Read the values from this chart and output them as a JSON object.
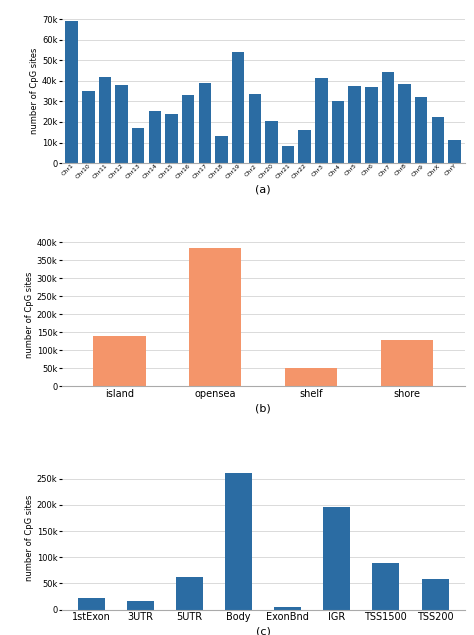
{
  "chart_a": {
    "categories": [
      "Chr1",
      "Chr10",
      "Chr11",
      "Chr12",
      "Chr13",
      "Chr14",
      "Chr15",
      "Chr16",
      "Chr17",
      "Chr18",
      "Chr19",
      "Chr2",
      "Chr20",
      "Chr21",
      "Chr22",
      "Chr3",
      "Chr4",
      "Chr5",
      "Chr6",
      "Chr7",
      "Chr8",
      "Chr9",
      "ChrX",
      "ChrY"
    ],
    "values": [
      69000,
      35000,
      42000,
      38000,
      17000,
      25500,
      24000,
      33000,
      39000,
      13000,
      54000,
      33500,
      20500,
      8500,
      16000,
      41500,
      30000,
      37500,
      37000,
      44500,
      38500,
      32000,
      22500,
      11000
    ],
    "color": "#2b6ca3",
    "ylabel": "number of CpG sites",
    "label": "(a)",
    "ylim": [
      0,
      70000
    ],
    "yticks": [
      0,
      10000,
      20000,
      30000,
      40000,
      50000,
      60000,
      70000
    ]
  },
  "chart_b": {
    "categories": [
      "island",
      "opensea",
      "shelf",
      "shore"
    ],
    "values": [
      140000,
      385000,
      50000,
      130000
    ],
    "color": "#f4956a",
    "ylabel": "number of CpG sites",
    "label": "(b)",
    "ylim": [
      0,
      400000
    ],
    "yticks": [
      0,
      50000,
      100000,
      150000,
      200000,
      250000,
      300000,
      350000,
      400000
    ]
  },
  "chart_c": {
    "categories": [
      "1stExon",
      "3UTR",
      "5UTR",
      "Body",
      "ExonBnd",
      "IGR",
      "TSS1500",
      "TSS200"
    ],
    "values": [
      22000,
      17000,
      63000,
      260000,
      5000,
      195000,
      89000,
      58000
    ],
    "color": "#2b6ca3",
    "ylabel": "number of CpG sites",
    "label": "(c)",
    "ylim": [
      0,
      275000
    ],
    "yticks": [
      0,
      50000,
      100000,
      150000,
      200000,
      250000
    ]
  },
  "bg_color": "#ffffff",
  "grid_color": "#cccccc",
  "label_fontsize": 8,
  "tick_fontsize": 6,
  "ylabel_fontsize": 6,
  "xtick_fontsize_a": 4.5,
  "xtick_fontsize_bc": 7
}
